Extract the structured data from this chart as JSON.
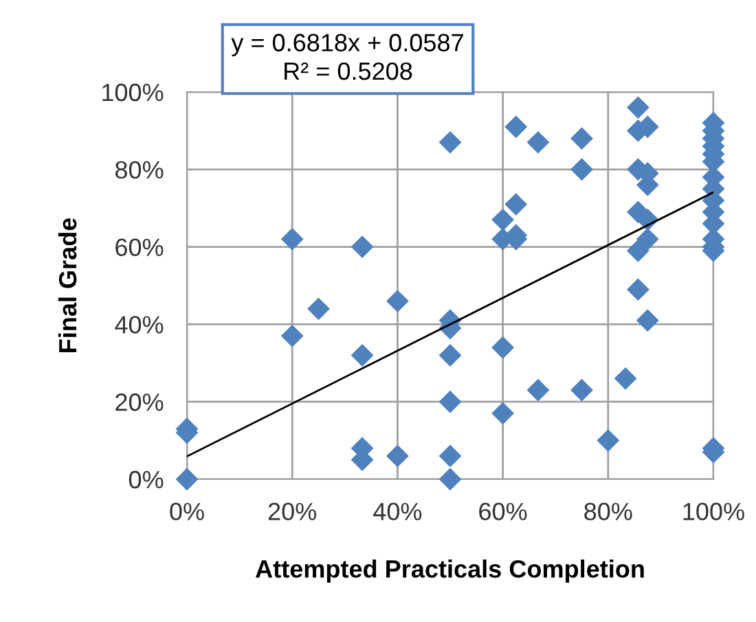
{
  "chart_data": {
    "type": "scatter",
    "xlabel": "Attempted Practicals Completion",
    "ylabel": "Final Grade",
    "annotations": [
      "y = 0.6818x + 0.0587\nR² = 0.5208"
    ],
    "xlim": [
      0,
      100
    ],
    "ylim": [
      0,
      100
    ],
    "xticks": [
      {
        "value": 0,
        "label": "0%"
      },
      {
        "value": 20,
        "label": "20%"
      },
      {
        "value": 40,
        "label": "40%"
      },
      {
        "value": 60,
        "label": "60%"
      },
      {
        "value": 80,
        "label": "80%"
      },
      {
        "value": 100,
        "label": "100%"
      }
    ],
    "yticks": [
      {
        "value": 0,
        "label": "0%"
      },
      {
        "value": 20,
        "label": "20%"
      },
      {
        "value": 40,
        "label": "40%"
      },
      {
        "value": 60,
        "label": "60%"
      },
      {
        "value": 80,
        "label": "80%"
      },
      {
        "value": 100,
        "label": "100%"
      }
    ],
    "grid": true,
    "legend": false,
    "marker": "diamond",
    "series": [
      {
        "color": "#4f81bd",
        "x": [
          0,
          0,
          0,
          20,
          20,
          25,
          33.3,
          33.3,
          33.3,
          33.3,
          40,
          40,
          50,
          50,
          50,
          50,
          50,
          50,
          50,
          60,
          60,
          60,
          60,
          62.5,
          62.5,
          62.5,
          62.5,
          66.7,
          66.7,
          75,
          75,
          75,
          80,
          83.3,
          85.7,
          85.7,
          85.7,
          85.7,
          85.7,
          85.7,
          87.5,
          87.5,
          87.5,
          87.5,
          87.5,
          87.5,
          100,
          100,
          100,
          100,
          100,
          100,
          100,
          100,
          100,
          100,
          100,
          100,
          100,
          100,
          100,
          100
        ],
        "values": [
          13,
          12,
          0,
          62,
          37,
          44,
          60,
          32,
          8,
          5,
          46,
          6,
          87,
          41,
          39,
          32,
          20,
          6,
          0,
          67,
          62,
          34,
          17,
          91,
          71,
          63,
          62,
          87,
          23,
          88,
          80,
          23,
          10,
          26,
          96,
          90,
          80,
          69,
          59,
          49,
          91,
          79,
          76,
          67,
          62,
          41,
          92,
          90,
          88,
          86,
          84,
          82,
          78,
          75,
          72,
          69,
          66,
          62,
          60,
          59,
          8,
          7
        ]
      },
      {
        "type": "line",
        "color": "#000000",
        "x": [
          0,
          100
        ],
        "values": [
          5.9,
          74.1
        ],
        "marker": "none",
        "line_style": "solid"
      }
    ]
  }
}
